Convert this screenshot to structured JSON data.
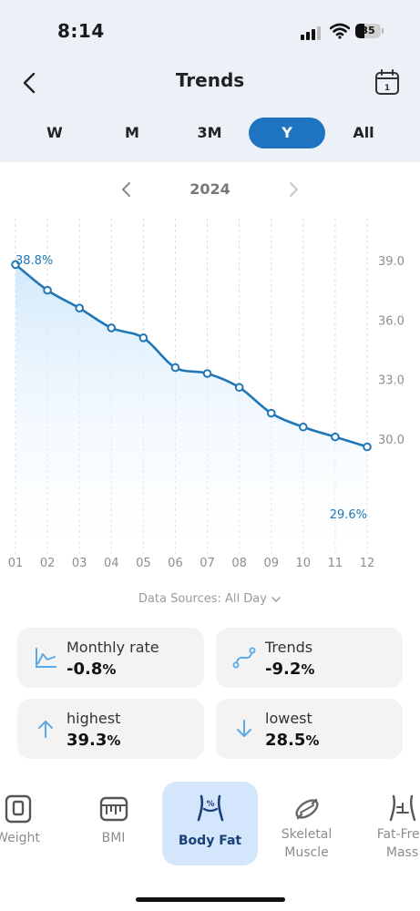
{
  "status_bar": {
    "time": "8:14",
    "battery": "35"
  },
  "header": {
    "title": "Trends"
  },
  "range_tabs": [
    {
      "label": "W",
      "active": false
    },
    {
      "label": "M",
      "active": false
    },
    {
      "label": "3M",
      "active": false
    },
    {
      "label": "Y",
      "active": true
    },
    {
      "label": "All",
      "active": false
    }
  ],
  "year_nav": {
    "year": "2024"
  },
  "chart_data": {
    "type": "area",
    "x": [
      "01",
      "02",
      "03",
      "04",
      "05",
      "06",
      "07",
      "08",
      "09",
      "10",
      "11",
      "12"
    ],
    "values": [
      38.8,
      37.5,
      36.6,
      35.6,
      35.1,
      33.6,
      33.3,
      32.6,
      31.3,
      30.6,
      30.1,
      29.6
    ],
    "y_ticks": [
      "39.0",
      "36.0",
      "33.0",
      "30.0"
    ],
    "ylim": [
      27.6,
      40.7
    ],
    "first_label": "38.8%",
    "last_label": "29.6%",
    "line_color": "#1f77b8",
    "fill_color": "#d6ecfb",
    "grid": "vertical dashed"
  },
  "data_sources": "Data Sources: All Day",
  "stats": {
    "monthly_rate": {
      "label": "Monthly rate",
      "value": "-0.8",
      "unit": "%"
    },
    "trends": {
      "label": "Trends",
      "value": "-9.2",
      "unit": "%"
    },
    "highest": {
      "label": "highest",
      "value": "39.3",
      "unit": "%"
    },
    "lowest": {
      "label": "lowest",
      "value": "28.5",
      "unit": "%"
    }
  },
  "metrics": [
    {
      "label": "Weight",
      "active": false
    },
    {
      "label": "BMI",
      "active": false
    },
    {
      "label": "Body Fat",
      "active": true
    },
    {
      "label": "Skeletal Muscle",
      "line1": "Skeletal",
      "line2": "Muscle",
      "active": false
    },
    {
      "label": "Fat-Free Mass",
      "line1": "Fat-Free",
      "line2": "Mass",
      "active": false
    }
  ],
  "colors": {
    "accent": "#1f74c2",
    "icon_blue": "#5aa9e6",
    "top_bg": "#ebf1f7"
  }
}
